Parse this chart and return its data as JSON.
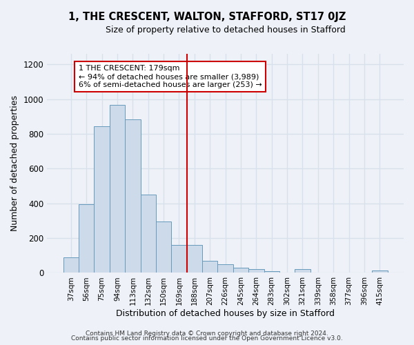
{
  "title": "1, THE CRESCENT, WALTON, STAFFORD, ST17 0JZ",
  "subtitle": "Size of property relative to detached houses in Stafford",
  "xlabel": "Distribution of detached houses by size in Stafford",
  "ylabel": "Number of detached properties",
  "bar_labels": [
    "37sqm",
    "56sqm",
    "75sqm",
    "94sqm",
    "113sqm",
    "132sqm",
    "150sqm",
    "169sqm",
    "188sqm",
    "207sqm",
    "226sqm",
    "245sqm",
    "264sqm",
    "283sqm",
    "302sqm",
    "321sqm",
    "339sqm",
    "358sqm",
    "377sqm",
    "396sqm",
    "415sqm"
  ],
  "bar_heights": [
    90,
    395,
    845,
    965,
    885,
    450,
    295,
    160,
    160,
    70,
    50,
    30,
    20,
    10,
    0,
    20,
    0,
    0,
    0,
    0,
    15
  ],
  "bar_color": "#ccdaea",
  "bar_edge_color": "#6699bb",
  "vline_x": 7.5,
  "vline_color": "#cc0000",
  "annotation_text": "1 THE CRESCENT: 179sqm\n← 94% of detached houses are smaller (3,989)\n6% of semi-detached houses are larger (253) →",
  "annotation_box_color": "#ffffff",
  "annotation_box_edge_color": "#cc0000",
  "ylim": [
    0,
    1260
  ],
  "yticks": [
    0,
    200,
    400,
    600,
    800,
    1000,
    1200
  ],
  "footer1": "Contains HM Land Registry data © Crown copyright and database right 2024.",
  "footer2": "Contains public sector information licensed under the Open Government Licence v3.0.",
  "bg_color": "#eef2f8",
  "grid_color": "#d8e0ec",
  "title_fontsize": 10.5,
  "subtitle_fontsize": 9,
  "annotation_fontsize": 8.0
}
